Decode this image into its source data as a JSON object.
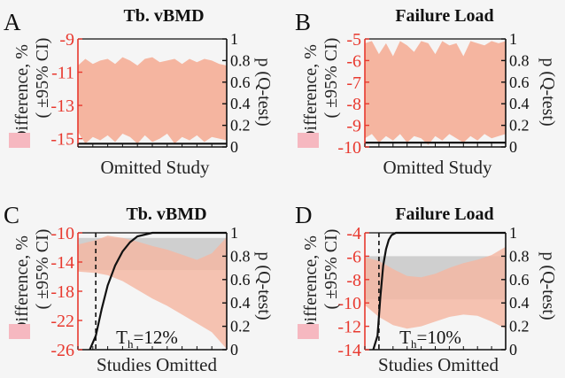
{
  "figure": {
    "background": "#f5f5f5",
    "left_color": "#e8392f",
    "band_color": "#f5b5a0",
    "gray_band_color": "#cfcfcf",
    "legend_swatch_color": "#f6b8c0"
  },
  "chart_data": [
    {
      "panel": "A",
      "type": "area",
      "title": "Tb. vBMD",
      "xlabel": "Omitted Study",
      "ylabel_left": "Difference, %",
      "ylabel_left_line2": "( ±95% CI)",
      "ylabel_right": "p (Q-test)",
      "ylim_left": [
        -15.5,
        -9
      ],
      "ylim_right": [
        0,
        1
      ],
      "left_ticks": [
        "-9",
        "-11",
        "-13",
        "-15"
      ],
      "left_tick_values": [
        -9,
        -11,
        -13,
        -15
      ],
      "right_ticks": [
        "1",
        "0.8",
        "0.6",
        "0.4",
        "0.2",
        "0"
      ],
      "right_tick_values": [
        1,
        0.8,
        0.6,
        0.4,
        0.2,
        0
      ],
      "band": {
        "x": [
          0,
          1,
          2,
          3,
          4,
          5,
          6,
          7,
          8,
          9,
          10,
          11,
          12,
          13,
          14,
          15,
          16,
          17,
          18,
          19,
          20
        ],
        "upper": [
          -10.6,
          -10.2,
          -10.5,
          -10.3,
          -10.2,
          -10.5,
          -10.1,
          -10.3,
          -10.6,
          -10.2,
          -10.1,
          -10.4,
          -10.3,
          -10.2,
          -10.5,
          -10.2,
          -10.4,
          -10.2,
          -10.3,
          -10.5,
          -10.6
        ],
        "lower": [
          -14.6,
          -15.3,
          -14.9,
          -15.1,
          -14.8,
          -15.2,
          -14.7,
          -14.9,
          -15.3,
          -14.8,
          -15.2,
          -15.0,
          -14.7,
          -15.3,
          -14.9,
          -15.1,
          -14.8,
          -15.2,
          -14.9,
          -15.0,
          -15.1
        ]
      },
      "p_line": {
        "x": [
          0,
          20
        ],
        "y": [
          0.03,
          0.03
        ]
      }
    },
    {
      "panel": "B",
      "type": "area",
      "title": "Failure Load",
      "xlabel": "Omitted Study",
      "ylabel_left": "Difference, %",
      "ylabel_left_line2": "( ±95% CI)",
      "ylabel_right": "p (Q-test)",
      "ylim_left": [
        -10,
        -5
      ],
      "ylim_right": [
        0,
        1
      ],
      "left_ticks": [
        "-5",
        "-6",
        "-7",
        "-8",
        "-9",
        "-10"
      ],
      "left_tick_values": [
        -5,
        -6,
        -7,
        -8,
        -9,
        -10
      ],
      "right_ticks": [
        "1",
        "0.8",
        "0.6",
        "0.4",
        "0.2",
        "0"
      ],
      "right_tick_values": [
        1,
        0.8,
        0.6,
        0.4,
        0.2,
        0
      ],
      "band": {
        "x": [
          0,
          1,
          2,
          3,
          4,
          5,
          6,
          7,
          8,
          9,
          10,
          11,
          12,
          13,
          14,
          15,
          16,
          17,
          18,
          19,
          20
        ],
        "upper": [
          -5.2,
          -5.1,
          -5.7,
          -5.2,
          -5.8,
          -5.1,
          -5.3,
          -5.6,
          -5.1,
          -5.2,
          -5.7,
          -5.1,
          -5.3,
          -5.2,
          -5.8,
          -5.1,
          -5.2,
          -5.3,
          -5.1,
          -5.2,
          -5.1
        ],
        "lower": [
          -9.6,
          -9.4,
          -9.8,
          -9.5,
          -9.7,
          -9.4,
          -9.8,
          -9.5,
          -9.6,
          -9.9,
          -9.5,
          -9.7,
          -9.4,
          -9.6,
          -9.8,
          -9.5,
          -9.7,
          -9.4,
          -9.6,
          -9.5,
          -9.4
        ]
      },
      "p_line": {
        "x": [
          0,
          20
        ],
        "y": [
          0.04,
          0.04
        ]
      }
    },
    {
      "panel": "C",
      "type": "line",
      "title": "Tb. vBMD",
      "xlabel": "Studies Omitted",
      "ylabel_left": "Difference, %",
      "ylabel_left_line2": "( ±95% CI)",
      "ylabel_right": "p (Q-test)",
      "ylim_left": [
        -26,
        -10
      ],
      "ylim_right": [
        0,
        1
      ],
      "left_ticks": [
        "-10",
        "-14",
        "-18",
        "-22",
        "-26"
      ],
      "left_tick_values": [
        -10,
        -14,
        -18,
        -22,
        -26
      ],
      "right_ticks": [
        "1",
        "0.8",
        "0.6",
        "0.4",
        "0.2",
        "0"
      ],
      "right_tick_values": [
        1,
        0.8,
        0.6,
        0.4,
        0.2,
        0
      ],
      "annotation": "T",
      "annotation_sub": "h",
      "annotation_value": "=12%",
      "threshold_x": 0.12,
      "reference_band": {
        "y0": -15.1,
        "y1": -10.7
      },
      "band": {
        "x": [
          0,
          0.12,
          0.2,
          0.3,
          0.4,
          0.5,
          0.6,
          0.7,
          0.8,
          0.9,
          1.0
        ],
        "upper": [
          -11.6,
          -11.0,
          -10.4,
          -10.7,
          -11.2,
          -11.8,
          -12.3,
          -13.0,
          -13.7,
          -12.8,
          -10.6
        ],
        "lower": [
          -15.3,
          -15.5,
          -15.8,
          -16.6,
          -17.8,
          -19.0,
          -20.0,
          -21.2,
          -22.4,
          -23.6,
          -25.9
        ]
      },
      "p_curve": {
        "x": [
          0.08,
          0.12,
          0.16,
          0.2,
          0.25,
          0.3,
          0.35,
          0.4,
          0.5,
          0.6,
          1.0
        ],
        "y": [
          0.0,
          0.12,
          0.35,
          0.55,
          0.72,
          0.84,
          0.92,
          0.97,
          1.0,
          1.0,
          1.0
        ]
      }
    },
    {
      "panel": "D",
      "type": "line",
      "title": "Failure Load",
      "xlabel": "Studies Omitted",
      "ylabel_left": "Difference, %",
      "ylabel_left_line2": "( ±95% CI)",
      "ylabel_right": "p (Q-test)",
      "ylim_left": [
        -14,
        -4
      ],
      "ylim_right": [
        0,
        1
      ],
      "left_ticks": [
        "-4",
        "-6",
        "-8",
        "-10",
        "-12",
        "-14"
      ],
      "left_tick_values": [
        -4,
        -6,
        -8,
        -10,
        -12,
        -14
      ],
      "right_ticks": [
        "1",
        "0.8",
        "0.6",
        "0.4",
        "0.2",
        "0"
      ],
      "right_tick_values": [
        1,
        0.8,
        0.6,
        0.4,
        0.2,
        0
      ],
      "annotation": "T",
      "annotation_sub": "h",
      "annotation_value": "=10%",
      "threshold_x": 0.1,
      "reference_band": {
        "y0": -9.7,
        "y1": -6.0
      },
      "band": {
        "x": [
          0,
          0.1,
          0.2,
          0.3,
          0.4,
          0.5,
          0.6,
          0.7,
          0.8,
          0.9,
          1.0
        ],
        "upper": [
          -6.1,
          -6.4,
          -7.1,
          -7.7,
          -7.8,
          -7.5,
          -7.0,
          -6.6,
          -6.3,
          -5.9,
          -5.2
        ],
        "lower": [
          -10.2,
          -11.2,
          -11.9,
          -12.2,
          -12.0,
          -11.6,
          -11.2,
          -11.0,
          -11.1,
          -11.6,
          -12.2
        ]
      },
      "p_curve": {
        "x": [
          0.06,
          0.09,
          0.11,
          0.13,
          0.15,
          0.17,
          0.19,
          0.22,
          0.3,
          1.0
        ],
        "y": [
          0.0,
          0.12,
          0.45,
          0.72,
          0.86,
          0.94,
          0.98,
          1.0,
          1.0,
          1.0
        ]
      }
    }
  ],
  "panel_letters": [
    "A",
    "B",
    "C",
    "D"
  ]
}
